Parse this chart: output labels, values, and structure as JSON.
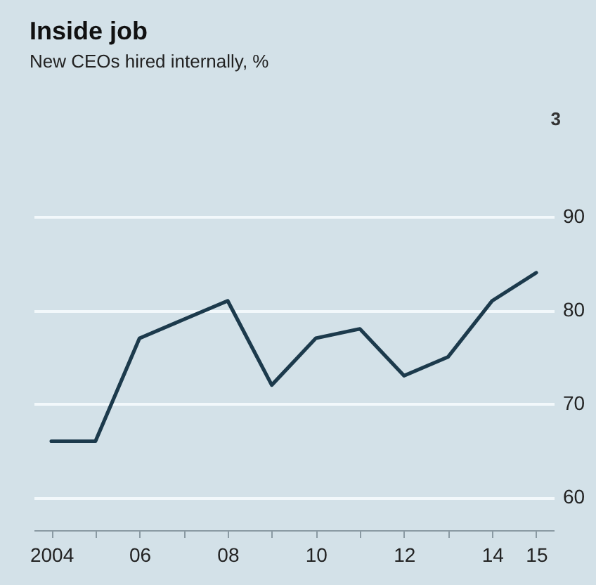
{
  "chart_data": {
    "type": "line",
    "title": "Inside job",
    "subtitle": "New CEOs hired internally, %",
    "x": [
      2004,
      2005,
      2006,
      2007,
      2008,
      2009,
      2010,
      2011,
      2012,
      2013,
      2014,
      2015
    ],
    "series": [
      {
        "color": "#1c3a4c",
        "values": [
          66,
          66,
          77,
          79,
          81,
          72,
          77,
          78,
          73,
          75,
          81,
          84
        ]
      }
    ],
    "xlim": [
      2003.6,
      2015.4
    ],
    "xticks": [
      {
        "value": 2004,
        "label": "2004"
      },
      {
        "value": 2005,
        "label": null
      },
      {
        "value": 2006,
        "label": "06"
      },
      {
        "value": 2007,
        "label": null
      },
      {
        "value": 2008,
        "label": "08"
      },
      {
        "value": 2009,
        "label": null
      },
      {
        "value": 2010,
        "label": "10"
      },
      {
        "value": 2011,
        "label": null
      },
      {
        "value": 2012,
        "label": "12"
      },
      {
        "value": 2013,
        "label": null
      },
      {
        "value": 2014,
        "label": "14"
      },
      {
        "value": 2015,
        "label": "15"
      }
    ],
    "ylim": [
      56.5,
      90
    ],
    "yticks": [
      60,
      70,
      80,
      90
    ],
    "grid": "y",
    "marker": "none",
    "line_style": "solid",
    "annotations": [
      "3"
    ]
  }
}
